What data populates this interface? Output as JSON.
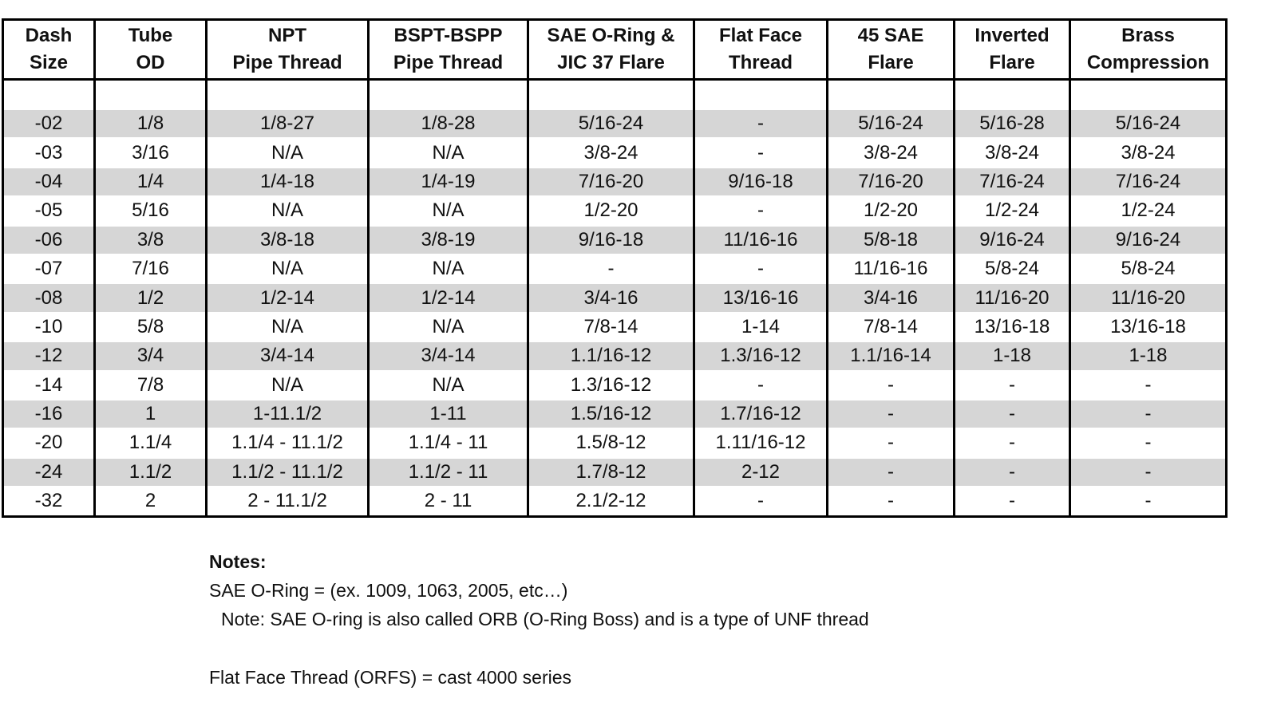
{
  "table": {
    "headers": [
      [
        "Dash",
        "Size"
      ],
      [
        "Tube",
        "OD"
      ],
      [
        "NPT",
        "Pipe Thread"
      ],
      [
        "BSPT-BSPP",
        "Pipe Thread"
      ],
      [
        "SAE O-Ring &",
        "JIC 37 Flare"
      ],
      [
        "Flat Face",
        "Thread"
      ],
      [
        "45 SAE",
        "Flare"
      ],
      [
        "Inverted",
        "Flare"
      ],
      [
        "Brass",
        "Compression"
      ]
    ],
    "rows": [
      [
        "-02",
        "1/8",
        "1/8-27",
        "1/8-28",
        "5/16-24",
        "-",
        "5/16-24",
        "5/16-28",
        "5/16-24"
      ],
      [
        "-03",
        "3/16",
        "N/A",
        "N/A",
        "3/8-24",
        "-",
        "3/8-24",
        "3/8-24",
        "3/8-24"
      ],
      [
        "-04",
        "1/4",
        "1/4-18",
        "1/4-19",
        "7/16-20",
        "9/16-18",
        "7/16-20",
        "7/16-24",
        "7/16-24"
      ],
      [
        "-05",
        "5/16",
        "N/A",
        "N/A",
        "1/2-20",
        "-",
        "1/2-20",
        "1/2-24",
        "1/2-24"
      ],
      [
        "-06",
        "3/8",
        "3/8-18",
        "3/8-19",
        "9/16-18",
        "11/16-16",
        "5/8-18",
        "9/16-24",
        "9/16-24"
      ],
      [
        "-07",
        "7/16",
        "N/A",
        "N/A",
        "-",
        "-",
        "11/16-16",
        "5/8-24",
        "5/8-24"
      ],
      [
        "-08",
        "1/2",
        "1/2-14",
        "1/2-14",
        "3/4-16",
        "13/16-16",
        "3/4-16",
        "11/16-20",
        "11/16-20"
      ],
      [
        "-10",
        "5/8",
        "N/A",
        "N/A",
        "7/8-14",
        "1-14",
        "7/8-14",
        "13/16-18",
        "13/16-18"
      ],
      [
        "-12",
        "3/4",
        "3/4-14",
        "3/4-14",
        "1.1/16-12",
        "1.3/16-12",
        "1.1/16-14",
        "1-18",
        "1-18"
      ],
      [
        "-14",
        "7/8",
        "N/A",
        "N/A",
        "1.3/16-12",
        "-",
        "-",
        "-",
        "-"
      ],
      [
        "-16",
        "1",
        "1-11.1/2",
        "1-11",
        "1.5/16-12",
        "1.7/16-12",
        "-",
        "-",
        "-"
      ],
      [
        "-20",
        "1.1/4",
        "1.1/4 - 11.1/2",
        "1.1/4 - 11",
        "1.5/8-12",
        "1.11/16-12",
        "-",
        "-",
        "-"
      ],
      [
        "-24",
        "1.1/2",
        "1.1/2 - 11.1/2",
        "1.1/2 - 11",
        "1.7/8-12",
        "2-12",
        "-",
        "-",
        "-"
      ],
      [
        "-32",
        "2",
        "2 - 11.1/2",
        "2 - 11",
        "2.1/2-12",
        "-",
        "-",
        "-",
        "-"
      ]
    ],
    "shade_color": "#d6d6d6"
  },
  "notes": {
    "title": "Notes:",
    "line1": "SAE O-Ring =  (ex. 1009, 1063, 2005, etc…)",
    "line2": "Note:  SAE O-ring is also called ORB (O-Ring Boss) and is a type of UNF thread",
    "line3": "Flat Face Thread (ORFS) = cast 4000 series"
  }
}
